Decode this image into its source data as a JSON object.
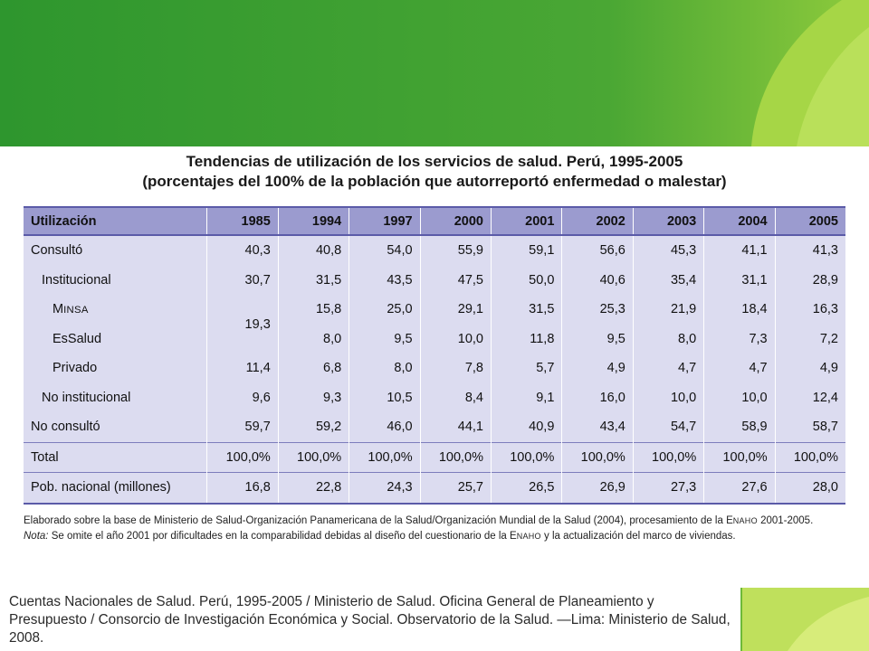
{
  "title_line1": "Tendencias de utilización de los servicios de salud. Perú, 1995-2005",
  "title_line2": "(porcentajes del 100% de la población que autorreportó enfermedad o malestar)",
  "table": {
    "header": {
      "label": "Utilización",
      "years": [
        "1985",
        "1994",
        "1997",
        "2000",
        "2001",
        "2002",
        "2003",
        "2004",
        "2005"
      ]
    },
    "rows": [
      {
        "label": "Consultó",
        "values": [
          "40,3",
          "40,8",
          "54,0",
          "55,9",
          "59,1",
          "56,6",
          "45,3",
          "41,1",
          "41,3"
        ]
      },
      {
        "label": "Institucional",
        "values": [
          "30,7",
          "31,5",
          "43,5",
          "47,5",
          "50,0",
          "40,6",
          "35,4",
          "31,1",
          "28,9"
        ]
      },
      {
        "label_first": "M",
        "label_rest": "INSA",
        "merged_1985": "19,3",
        "values": [
          "15,8",
          "25,0",
          "29,1",
          "31,5",
          "25,3",
          "21,9",
          "18,4",
          "16,3"
        ]
      },
      {
        "label": "EsSalud",
        "values": [
          "8,0",
          "9,5",
          "10,0",
          "11,8",
          "9,5",
          "8,0",
          "7,3",
          "7,2"
        ]
      },
      {
        "label": "Privado",
        "values": [
          "11,4",
          "6,8",
          "8,0",
          "7,8",
          "5,7",
          "4,9",
          "4,7",
          "4,7",
          "4,9"
        ]
      },
      {
        "label": "No institucional",
        "values": [
          "9,6",
          "9,3",
          "10,5",
          "8,4",
          "9,1",
          "16,0",
          "10,0",
          "10,0",
          "12,4"
        ]
      },
      {
        "label": "No consultó",
        "values": [
          "59,7",
          "59,2",
          "46,0",
          "44,1",
          "40,9",
          "43,4",
          "54,7",
          "58,9",
          "58,7"
        ]
      },
      {
        "label": "Total",
        "values": [
          "100,0%",
          "100,0%",
          "100,0%",
          "100,0%",
          "100,0%",
          "100,0%",
          "100,0%",
          "100,0%",
          "100,0%"
        ]
      },
      {
        "label": "Pob. nacional (millones)",
        "values": [
          "16,8",
          "22,8",
          "24,3",
          "25,7",
          "26,5",
          "26,9",
          "27,3",
          "27,6",
          "28,0"
        ]
      }
    ]
  },
  "notes": {
    "source": "Elaborado sobre la base de Ministerio de Salud-Organización Panamericana de la Salud/Organización Mundial de la Salud (2004), procesamiento de la E",
    "source_sc": "NAHO",
    "source_end": " 2001-2005.",
    "nota_label": "Nota:",
    "nota_text": " Se omite el año 2001 por dificultades en la comparabilidad debidas al diseño del cuestionario de la E",
    "nota_sc": "NAHO",
    "nota_end": " y la actualización del marco de viviendas."
  },
  "citation": "Cuentas Nacionales de Salud. Perú, 1995-2005 / Ministerio de Salud. Oficina General de Planeamiento y Presupuesto / Consorcio de Investigación Económica y Social. Observatorio de la Salud. —Lima: Ministerio de Salud, 2008.",
  "colors": {
    "green_dark": "#2f9a2f",
    "green_light": "#9bd23a",
    "header_bg": "#9b9bcf",
    "body_bg": "#dcdcf0"
  }
}
